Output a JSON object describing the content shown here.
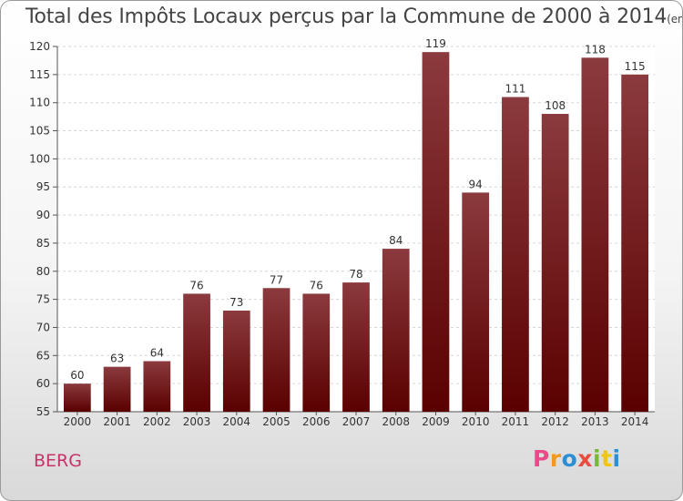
{
  "header": {
    "title": "Total des Impôts Locaux perçus par la Commune de 2000 à 2014",
    "unit": "(en milliers d'€)"
  },
  "footer": {
    "commune": "BERG",
    "logo": "Proxiti"
  },
  "colors": {
    "bar_top": "#8b3a3e",
    "bar_bottom": "#5a0000",
    "commune": "#c8326a"
  },
  "chart_data": {
    "type": "bar",
    "title": "Total des Impôts Locaux perçus par la Commune de 2000 à 2014",
    "subtitle": "(en milliers d'€)",
    "categories": [
      "2000",
      "2001",
      "2002",
      "2003",
      "2004",
      "2005",
      "2006",
      "2007",
      "2008",
      "2009",
      "2010",
      "2011",
      "2012",
      "2013",
      "2014"
    ],
    "values": [
      60,
      63,
      64,
      76,
      73,
      77,
      76,
      78,
      84,
      119,
      94,
      111,
      108,
      118,
      115
    ],
    "ylim": [
      55,
      120
    ],
    "yticks": [
      55,
      60,
      65,
      70,
      75,
      80,
      85,
      90,
      95,
      100,
      105,
      110,
      115,
      120
    ],
    "grid": true,
    "xlabel": "",
    "ylabel": ""
  }
}
